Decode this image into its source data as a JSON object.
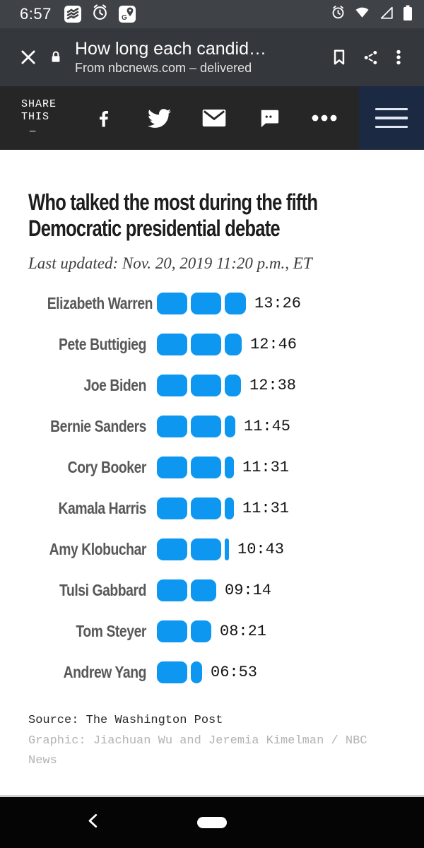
{
  "status_bar": {
    "time": "6:57"
  },
  "chrome_header": {
    "title": "How long each candid…",
    "subtitle": "From nbcnews.com – delivered"
  },
  "share_bar": {
    "label_line1": "SHARE",
    "label_line2": "THIS",
    "dash": "—"
  },
  "article": {
    "title": "Who talked the most during the fifth Democratic presidential debate",
    "updated": "Last updated: Nov. 20, 2019 11:20 p.m., ET",
    "source": "Source: The Washington Post",
    "credit": "Graphic: Jiachuan Wu and Jeremia Kimelman / NBC News"
  },
  "chart_data": {
    "type": "bar",
    "title": "Who talked the most during the fifth Democratic presidential debate",
    "unit": "speaking time (mm:ss)",
    "orientation": "horizontal",
    "segment_minutes": 5,
    "bar_color": "#0d97f0",
    "categories": [
      "Elizabeth Warren",
      "Pete Buttigieg",
      "Joe Biden",
      "Bernie Sanders",
      "Cory Booker",
      "Kamala Harris",
      "Amy Klobuchar",
      "Tulsi Gabbard",
      "Tom Steyer",
      "Andrew Yang"
    ],
    "values_mmss": [
      "13:26",
      "12:46",
      "12:38",
      "11:45",
      "11:31",
      "11:31",
      "10:43",
      "09:14",
      "08:21",
      "06:53"
    ],
    "values_seconds": [
      806,
      766,
      758,
      705,
      691,
      691,
      643,
      554,
      501,
      413
    ]
  },
  "colors": {
    "bar_blue": "#0d97f0",
    "status_bar_bg": "#3f4348",
    "chrome_header_bg": "#34373b",
    "share_bar_bg": "#262626",
    "hamburger_navy": "#1b2942",
    "nav_bar_bg": "#050505"
  }
}
